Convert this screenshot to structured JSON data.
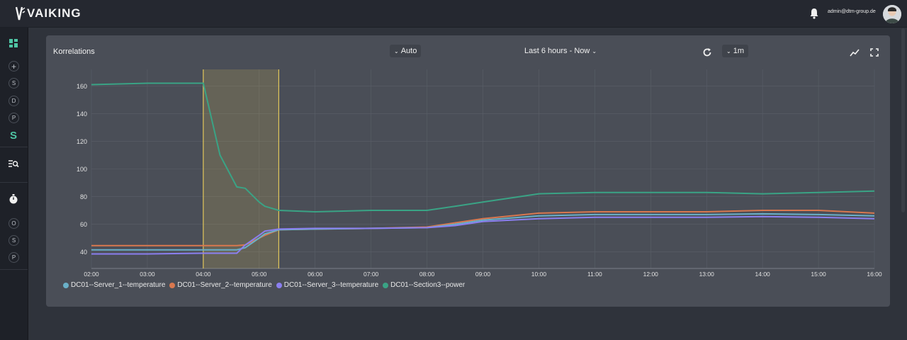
{
  "app": {
    "brand": "VAIKING"
  },
  "header": {
    "user_email": "admin@dtm-group.de"
  },
  "sidebar": {
    "items": [
      {
        "label": "",
        "icon": "dashboard-icon"
      },
      {
        "label": "+",
        "icon": "plus-icon"
      },
      {
        "label": "S"
      },
      {
        "label": "D"
      },
      {
        "label": "P"
      },
      {
        "label": "S"
      },
      {
        "label": "",
        "icon": "search-list-icon"
      },
      {
        "label": "",
        "icon": "timer-icon"
      },
      {
        "label": "O"
      },
      {
        "label": "S"
      },
      {
        "label": "P"
      }
    ]
  },
  "panel": {
    "title": "Korrelations",
    "interval": "Auto",
    "time_range": "Last 6 hours - Now",
    "refresh_rate": "1m"
  },
  "colors": {
    "server1": "#6ab0c8",
    "server2": "#d9784f",
    "server3": "#8b7ff0",
    "power": "#3aa385",
    "selection": "#e3c85a",
    "accent": "#4fc6a5"
  },
  "chart_data": {
    "type": "line",
    "x_ticks": [
      "02:00",
      "03:00",
      "04:00",
      "05:00",
      "06:00",
      "07:00",
      "08:00",
      "09:00",
      "10:00",
      "11:00",
      "12:00",
      "13:00",
      "14:00",
      "15:00",
      "16:00"
    ],
    "y_ticks": [
      40,
      60,
      80,
      100,
      120,
      140,
      160
    ],
    "ylim": [
      28,
      172
    ],
    "xlim_hours": [
      2,
      16
    ],
    "grid": true,
    "legend_position": "bottom-left",
    "selection_hours": [
      4.0,
      5.35
    ],
    "x": [
      2.0,
      3.0,
      4.0,
      4.3,
      4.6,
      4.75,
      5.0,
      5.1,
      5.35,
      6.0,
      7.0,
      8.0,
      8.5,
      9.0,
      10.0,
      11.0,
      12.0,
      13.0,
      14.0,
      15.0,
      16.0
    ],
    "series": [
      {
        "name": "DC01--Server_1--temperature",
        "values": [
          41.5,
          41.5,
          41.5,
          41.5,
          41.5,
          43,
          50,
          53,
          56,
          56.5,
          57,
          57.5,
          60,
          63,
          66,
          67,
          67,
          67,
          67.5,
          67,
          66
        ]
      },
      {
        "name": "DC01--Server_2--temperature",
        "values": [
          44.5,
          44.5,
          44.5,
          44.5,
          44.5,
          45,
          50,
          52,
          56,
          56.5,
          57,
          58,
          61,
          64,
          68,
          69,
          69,
          69,
          70,
          70,
          68
        ]
      },
      {
        "name": "DC01--Server_3--temperature",
        "values": [
          38.5,
          38.5,
          39,
          39,
          39,
          45,
          52,
          55,
          56.5,
          57,
          57,
          57.5,
          59,
          62,
          64,
          65,
          65,
          65,
          65.5,
          65,
          64
        ]
      },
      {
        "name": "DC01--Section3--power",
        "values": [
          161,
          162,
          162,
          110,
          87,
          86,
          76,
          73,
          70,
          69,
          70,
          70,
          73,
          76,
          82,
          83,
          83,
          83,
          82,
          83,
          84
        ]
      }
    ]
  }
}
